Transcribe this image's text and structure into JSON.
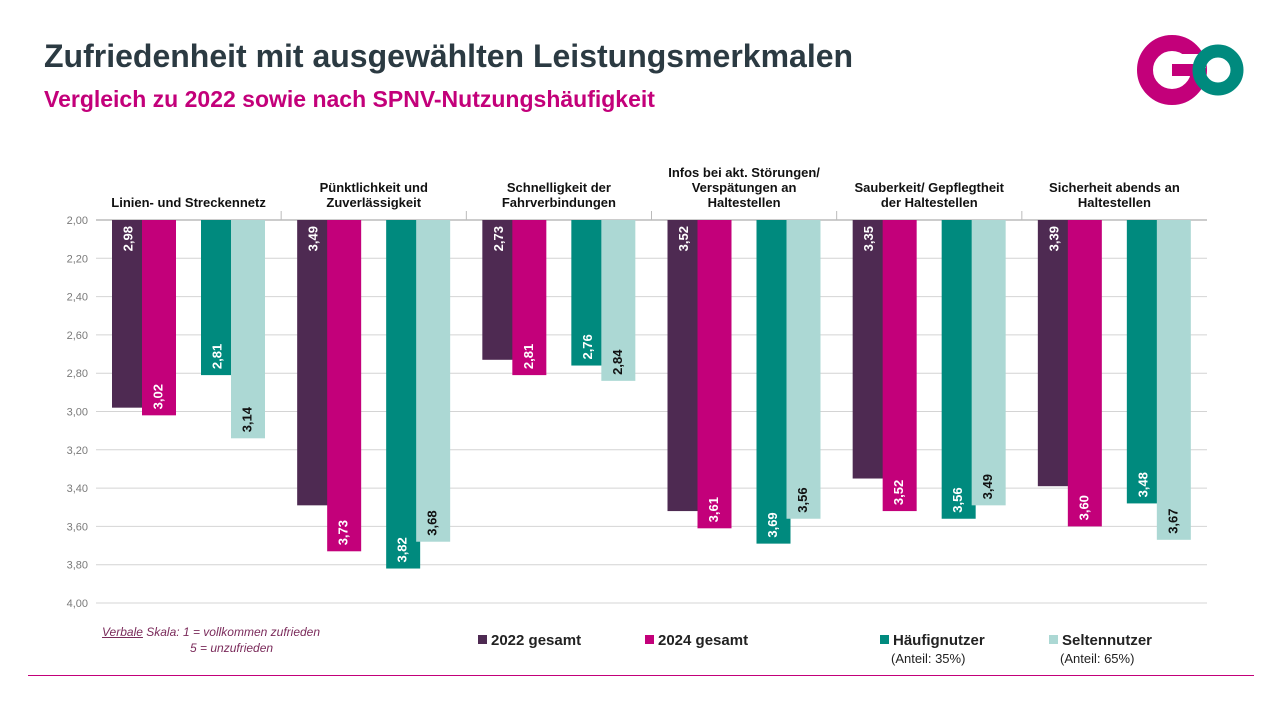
{
  "title": "Zufriedenheit mit ausgewählten Leistungsmerkmalen",
  "subtitle": "Vergleich zu 2022 sowie nach SPNV-Nutzungshäufigkeit",
  "logo": {
    "text": "GO",
    "colors": {
      "g": "#c3007a",
      "o": "#008a7e"
    }
  },
  "scale_note": {
    "underlined": "Verbale",
    "line1_rest": " Skala: 1 = vollkommen zufrieden",
    "line2": "5 = unzufrieden"
  },
  "legend": [
    {
      "label": "2022 gesamt",
      "sub": "",
      "color": "#4e2a52"
    },
    {
      "label": "2024 gesamt",
      "sub": "",
      "color": "#c3007a"
    },
    {
      "label": "Häufignutzer",
      "sub": "(Anteil: 35%)",
      "color": "#008a7e"
    },
    {
      "label": "Seltennutzer",
      "sub": "(Anteil: 65%)",
      "color": "#acd8d4"
    }
  ],
  "chart_data": {
    "type": "bar",
    "orientation": "vertical, bars hanging from top (inverted y-axis)",
    "y_axis": {
      "min": 2.0,
      "max": 4.0,
      "step": 0.2,
      "inverted": true,
      "grid": true,
      "tick_labels": [
        "2,00",
        "2,20",
        "2,40",
        "2,60",
        "2,80",
        "3,00",
        "3,20",
        "3,40",
        "3,60",
        "3,80",
        "4,00"
      ]
    },
    "categories": [
      "Linien- und Streckennetz",
      "Pünktlichkeit und Zuverlässigkeit",
      "Schnelligkeit der Fahrverbindungen",
      "Infos bei akt. Störungen/ Verspätungen an Haltestellen",
      "Sauberkeit/ Gepflegtheit der Haltestellen",
      "Sicherheit abends an Haltestellen"
    ],
    "category_lines": [
      [
        "Linien- und Streckennetz"
      ],
      [
        "Pünktlichkeit und",
        "Zuverlässigkeit"
      ],
      [
        "Schnelligkeit der",
        "Fahrverbindungen"
      ],
      [
        "Infos bei akt. Störungen/",
        "Verspätungen an",
        "Haltestellen"
      ],
      [
        "Sauberkeit/ Gepflegtheit",
        "der Haltestellen"
      ],
      [
        "Sicherheit abends an",
        "Haltestellen"
      ]
    ],
    "series": [
      {
        "name": "2022 gesamt",
        "color": "#4e2a52",
        "values": [
          2.98,
          3.49,
          2.73,
          3.52,
          3.35,
          3.39
        ],
        "labels": [
          "2,98",
          "3,49",
          "2,73",
          "3,52",
          "3,35",
          "3,39"
        ]
      },
      {
        "name": "2024 gesamt",
        "color": "#c3007a",
        "values": [
          3.02,
          3.73,
          2.81,
          3.61,
          3.52,
          3.6
        ],
        "labels": [
          "3,02",
          "3,73",
          "2,81",
          "3,61",
          "3,52",
          "3,60"
        ]
      },
      {
        "name": "Häufignutzer",
        "color": "#008a7e",
        "values": [
          2.81,
          3.82,
          2.76,
          3.69,
          3.56,
          3.48
        ],
        "labels": [
          "2,81",
          "3,82",
          "2,76",
          "3,69",
          "3,56",
          "3,48"
        ]
      },
      {
        "name": "Seltennutzer",
        "color": "#acd8d4",
        "values": [
          3.14,
          3.68,
          2.84,
          3.56,
          3.49,
          3.67
        ],
        "labels": [
          "3,14",
          "3,68",
          "2,84",
          "3,56",
          "3,49",
          "3,67"
        ]
      }
    ]
  }
}
